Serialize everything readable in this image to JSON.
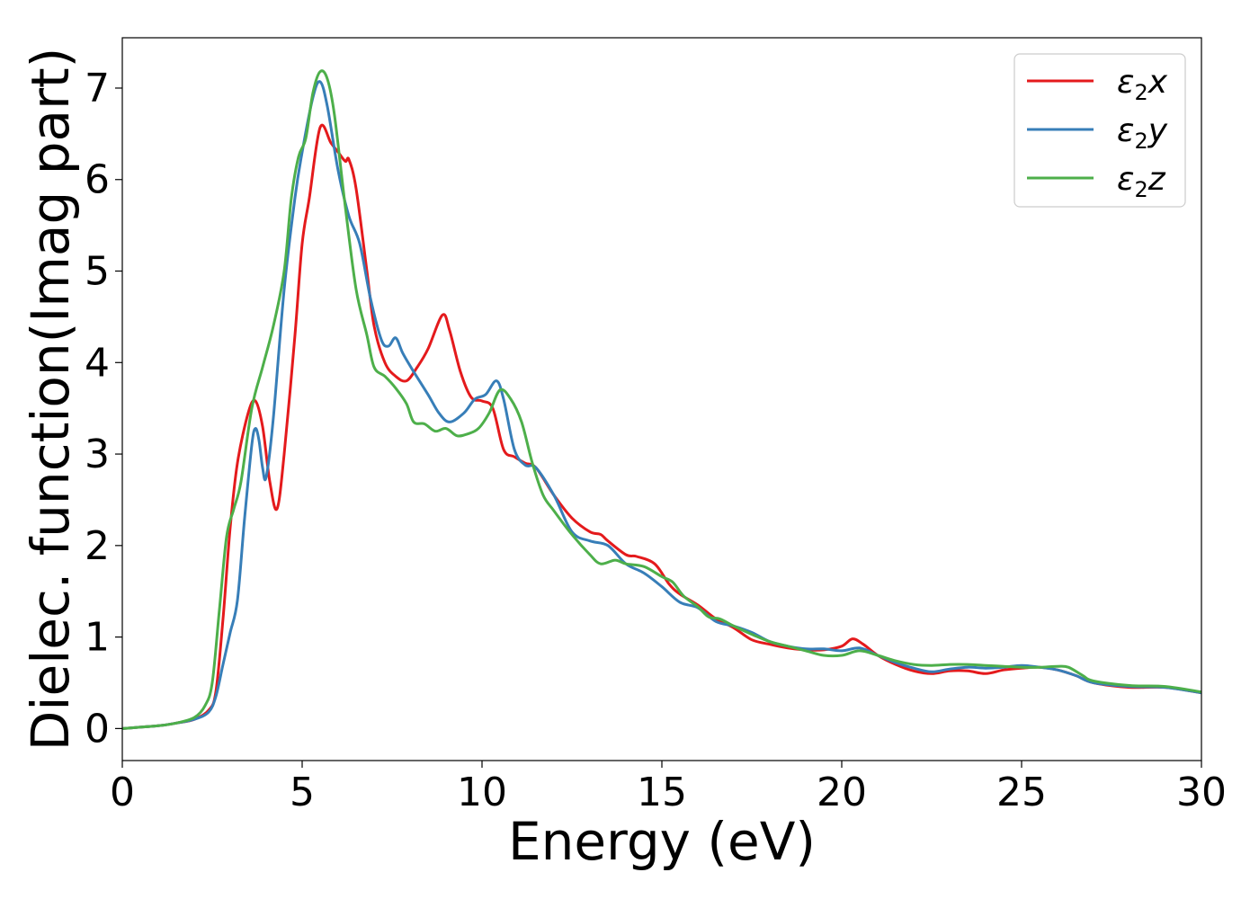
{
  "chart_data": {
    "type": "line",
    "xlabel": "Energy (eV)",
    "ylabel": "Dielec. function(Imag part)",
    "xlim": [
      0,
      30
    ],
    "ylim": [
      -0.35,
      7.55
    ],
    "xticks": [
      0,
      5,
      10,
      15,
      20,
      25,
      30
    ],
    "yticks": [
      0,
      1,
      2,
      3,
      4,
      5,
      6,
      7
    ],
    "grid": false,
    "legend_position": "top-right",
    "series": [
      {
        "name": "ε₂x",
        "legend_base": "ε",
        "legend_sub": "2",
        "legend_var": "x",
        "color": "#e41a1c",
        "points": [
          [
            0,
            0
          ],
          [
            1,
            0.03
          ],
          [
            1.5,
            0.06
          ],
          [
            2,
            0.1
          ],
          [
            2.4,
            0.2
          ],
          [
            2.6,
            0.4
          ],
          [
            2.8,
            1.2
          ],
          [
            3.0,
            2.2
          ],
          [
            3.2,
            2.9
          ],
          [
            3.5,
            3.45
          ],
          [
            3.7,
            3.58
          ],
          [
            3.9,
            3.3
          ],
          [
            4.1,
            2.7
          ],
          [
            4.3,
            2.4
          ],
          [
            4.5,
            3.0
          ],
          [
            4.8,
            4.3
          ],
          [
            5.0,
            5.3
          ],
          [
            5.2,
            5.8
          ],
          [
            5.5,
            6.57
          ],
          [
            5.8,
            6.4
          ],
          [
            6.0,
            6.3
          ],
          [
            6.2,
            6.2
          ],
          [
            6.3,
            6.22
          ],
          [
            6.5,
            5.9
          ],
          [
            6.8,
            5.0
          ],
          [
            7.0,
            4.4
          ],
          [
            7.3,
            4.0
          ],
          [
            7.6,
            3.85
          ],
          [
            7.9,
            3.8
          ],
          [
            8.2,
            3.95
          ],
          [
            8.5,
            4.15
          ],
          [
            8.9,
            4.52
          ],
          [
            9.1,
            4.35
          ],
          [
            9.4,
            3.9
          ],
          [
            9.7,
            3.62
          ],
          [
            10.0,
            3.58
          ],
          [
            10.3,
            3.5
          ],
          [
            10.6,
            3.05
          ],
          [
            10.9,
            2.97
          ],
          [
            11.2,
            2.9
          ],
          [
            11.5,
            2.85
          ],
          [
            12.0,
            2.55
          ],
          [
            12.5,
            2.3
          ],
          [
            13.0,
            2.15
          ],
          [
            13.3,
            2.12
          ],
          [
            13.5,
            2.05
          ],
          [
            14.0,
            1.9
          ],
          [
            14.3,
            1.88
          ],
          [
            14.8,
            1.8
          ],
          [
            15.2,
            1.58
          ],
          [
            15.5,
            1.47
          ],
          [
            16.0,
            1.35
          ],
          [
            16.5,
            1.2
          ],
          [
            17.0,
            1.1
          ],
          [
            17.5,
            0.97
          ],
          [
            18.0,
            0.92
          ],
          [
            18.5,
            0.88
          ],
          [
            19.0,
            0.86
          ],
          [
            19.5,
            0.86
          ],
          [
            20.0,
            0.9
          ],
          [
            20.3,
            0.98
          ],
          [
            20.6,
            0.92
          ],
          [
            21.0,
            0.8
          ],
          [
            21.5,
            0.7
          ],
          [
            22.0,
            0.63
          ],
          [
            22.5,
            0.6
          ],
          [
            23.0,
            0.63
          ],
          [
            23.5,
            0.63
          ],
          [
            24.0,
            0.6
          ],
          [
            24.5,
            0.64
          ],
          [
            25.0,
            0.66
          ],
          [
            25.5,
            0.67
          ],
          [
            26.0,
            0.64
          ],
          [
            26.5,
            0.58
          ],
          [
            27.0,
            0.5
          ],
          [
            28.0,
            0.45
          ],
          [
            29.0,
            0.45
          ],
          [
            30,
            0.39
          ]
        ]
      },
      {
        "name": "ε₂y",
        "legend_base": "ε",
        "legend_sub": "2",
        "legend_var": "y",
        "color": "#377eb8",
        "points": [
          [
            0,
            0
          ],
          [
            1,
            0.03
          ],
          [
            1.5,
            0.06
          ],
          [
            2,
            0.1
          ],
          [
            2.4,
            0.18
          ],
          [
            2.6,
            0.35
          ],
          [
            2.8,
            0.7
          ],
          [
            3.0,
            1.05
          ],
          [
            3.2,
            1.4
          ],
          [
            3.4,
            2.3
          ],
          [
            3.6,
            3.1
          ],
          [
            3.7,
            3.28
          ],
          [
            3.8,
            3.15
          ],
          [
            3.9,
            2.85
          ],
          [
            4.0,
            2.75
          ],
          [
            4.2,
            3.4
          ],
          [
            4.5,
            4.8
          ],
          [
            4.8,
            5.8
          ],
          [
            5.0,
            6.3
          ],
          [
            5.3,
            6.9
          ],
          [
            5.5,
            7.07
          ],
          [
            5.7,
            6.8
          ],
          [
            6.0,
            6.1
          ],
          [
            6.3,
            5.6
          ],
          [
            6.6,
            5.3
          ],
          [
            6.9,
            4.7
          ],
          [
            7.2,
            4.25
          ],
          [
            7.4,
            4.18
          ],
          [
            7.6,
            4.27
          ],
          [
            7.8,
            4.1
          ],
          [
            8.1,
            3.9
          ],
          [
            8.5,
            3.65
          ],
          [
            8.8,
            3.45
          ],
          [
            9.1,
            3.35
          ],
          [
            9.5,
            3.45
          ],
          [
            9.8,
            3.6
          ],
          [
            10.1,
            3.65
          ],
          [
            10.4,
            3.8
          ],
          [
            10.6,
            3.6
          ],
          [
            10.9,
            3.05
          ],
          [
            11.2,
            2.88
          ],
          [
            11.5,
            2.85
          ],
          [
            12.0,
            2.55
          ],
          [
            12.5,
            2.15
          ],
          [
            13.0,
            2.05
          ],
          [
            13.5,
            2.0
          ],
          [
            14.0,
            1.8
          ],
          [
            14.5,
            1.7
          ],
          [
            15.0,
            1.55
          ],
          [
            15.5,
            1.38
          ],
          [
            16.0,
            1.32
          ],
          [
            16.5,
            1.17
          ],
          [
            17.0,
            1.12
          ],
          [
            17.5,
            1.05
          ],
          [
            18.0,
            0.95
          ],
          [
            18.5,
            0.9
          ],
          [
            19.0,
            0.87
          ],
          [
            19.5,
            0.87
          ],
          [
            20.0,
            0.85
          ],
          [
            20.5,
            0.88
          ],
          [
            21.0,
            0.8
          ],
          [
            21.5,
            0.72
          ],
          [
            22.0,
            0.66
          ],
          [
            22.5,
            0.62
          ],
          [
            23.0,
            0.65
          ],
          [
            23.5,
            0.67
          ],
          [
            24.0,
            0.66
          ],
          [
            24.5,
            0.67
          ],
          [
            25.0,
            0.69
          ],
          [
            25.5,
            0.67
          ],
          [
            26.0,
            0.64
          ],
          [
            26.5,
            0.58
          ],
          [
            27.0,
            0.5
          ],
          [
            28.0,
            0.46
          ],
          [
            29.0,
            0.45
          ],
          [
            30,
            0.39
          ]
        ]
      },
      {
        "name": "ε₂z",
        "legend_base": "ε",
        "legend_sub": "2",
        "legend_var": "z",
        "color": "#4daf4a",
        "points": [
          [
            0,
            0
          ],
          [
            1,
            0.03
          ],
          [
            1.5,
            0.06
          ],
          [
            2,
            0.12
          ],
          [
            2.3,
            0.25
          ],
          [
            2.5,
            0.5
          ],
          [
            2.7,
            1.3
          ],
          [
            2.9,
            2.1
          ],
          [
            3.1,
            2.4
          ],
          [
            3.3,
            2.7
          ],
          [
            3.6,
            3.5
          ],
          [
            3.9,
            3.95
          ],
          [
            4.2,
            4.4
          ],
          [
            4.5,
            5.0
          ],
          [
            4.7,
            5.8
          ],
          [
            4.9,
            6.25
          ],
          [
            5.1,
            6.45
          ],
          [
            5.3,
            6.95
          ],
          [
            5.5,
            7.18
          ],
          [
            5.7,
            7.1
          ],
          [
            5.9,
            6.7
          ],
          [
            6.2,
            5.7
          ],
          [
            6.5,
            4.8
          ],
          [
            6.8,
            4.3
          ],
          [
            7.0,
            3.95
          ],
          [
            7.3,
            3.85
          ],
          [
            7.6,
            3.72
          ],
          [
            7.9,
            3.55
          ],
          [
            8.1,
            3.35
          ],
          [
            8.4,
            3.33
          ],
          [
            8.7,
            3.25
          ],
          [
            9.0,
            3.28
          ],
          [
            9.3,
            3.2
          ],
          [
            9.6,
            3.22
          ],
          [
            9.9,
            3.28
          ],
          [
            10.2,
            3.45
          ],
          [
            10.5,
            3.7
          ],
          [
            10.8,
            3.6
          ],
          [
            11.1,
            3.35
          ],
          [
            11.4,
            2.9
          ],
          [
            11.7,
            2.55
          ],
          [
            12.0,
            2.38
          ],
          [
            12.5,
            2.12
          ],
          [
            13.0,
            1.9
          ],
          [
            13.3,
            1.8
          ],
          [
            13.7,
            1.84
          ],
          [
            14.0,
            1.8
          ],
          [
            14.5,
            1.77
          ],
          [
            15.0,
            1.66
          ],
          [
            15.3,
            1.6
          ],
          [
            15.6,
            1.45
          ],
          [
            16.0,
            1.33
          ],
          [
            16.3,
            1.22
          ],
          [
            16.6,
            1.2
          ],
          [
            17.0,
            1.12
          ],
          [
            17.5,
            1.03
          ],
          [
            18.0,
            0.95
          ],
          [
            18.5,
            0.9
          ],
          [
            19.0,
            0.85
          ],
          [
            19.5,
            0.8
          ],
          [
            20.0,
            0.8
          ],
          [
            20.5,
            0.85
          ],
          [
            21.0,
            0.8
          ],
          [
            21.5,
            0.74
          ],
          [
            22.0,
            0.7
          ],
          [
            22.5,
            0.69
          ],
          [
            23.0,
            0.7
          ],
          [
            23.5,
            0.7
          ],
          [
            24.0,
            0.69
          ],
          [
            24.5,
            0.68
          ],
          [
            25.0,
            0.67
          ],
          [
            25.5,
            0.67
          ],
          [
            26.0,
            0.68
          ],
          [
            26.3,
            0.67
          ],
          [
            26.7,
            0.58
          ],
          [
            27.0,
            0.52
          ],
          [
            28.0,
            0.47
          ],
          [
            29.0,
            0.46
          ],
          [
            30,
            0.4
          ]
        ]
      }
    ]
  }
}
